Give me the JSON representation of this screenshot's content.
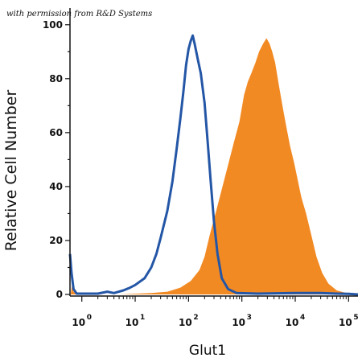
{
  "watermark": "with permission from R&D Systems",
  "chart_data": {
    "type": "area",
    "xlabel": "Glut1",
    "ylabel": "Relative Cell Number",
    "x_scale": "log",
    "xlim": [
      0.6,
      150000
    ],
    "ylim": [
      0,
      105
    ],
    "y_ticks": [
      0,
      20,
      40,
      60,
      80,
      100
    ],
    "x_tick_labels": [
      {
        "value": 1,
        "base": "10",
        "exp": "0"
      },
      {
        "value": 10,
        "base": "10",
        "exp": "1"
      },
      {
        "value": 100,
        "base": "10",
        "exp": "2"
      },
      {
        "value": 1000,
        "base": "10",
        "exp": "3"
      },
      {
        "value": 10000,
        "base": "10",
        "exp": "4"
      },
      {
        "value": 100000,
        "base": "10",
        "exp": "5"
      }
    ],
    "minor_tick_decades": [
      0,
      1,
      2,
      3,
      4
    ],
    "grid": false,
    "legend": "none",
    "series": [
      {
        "style": "filled",
        "color": "#f28a24",
        "points": [
          [
            0.62,
            0
          ],
          [
            0.65,
            3
          ],
          [
            0.7,
            1
          ],
          [
            0.8,
            0
          ],
          [
            5,
            0
          ],
          [
            20,
            0.5
          ],
          [
            40,
            1
          ],
          [
            70,
            2.5
          ],
          [
            110,
            5
          ],
          [
            160,
            9
          ],
          [
            200,
            14
          ],
          [
            250,
            22
          ],
          [
            320,
            30
          ],
          [
            420,
            39
          ],
          [
            550,
            48
          ],
          [
            700,
            56
          ],
          [
            900,
            64
          ],
          [
            1100,
            74
          ],
          [
            1300,
            79
          ],
          [
            1500,
            82
          ],
          [
            1800,
            86
          ],
          [
            2100,
            90
          ],
          [
            2500,
            93
          ],
          [
            2900,
            95
          ],
          [
            3300,
            93
          ],
          [
            3700,
            90
          ],
          [
            4200,
            86
          ],
          [
            5000,
            77
          ],
          [
            6000,
            68
          ],
          [
            7000,
            61
          ],
          [
            8000,
            55
          ],
          [
            9500,
            49
          ],
          [
            11000,
            43
          ],
          [
            13000,
            36
          ],
          [
            16000,
            30
          ],
          [
            20000,
            22
          ],
          [
            25000,
            14
          ],
          [
            32000,
            8
          ],
          [
            42000,
            4
          ],
          [
            60000,
            1.5
          ],
          [
            90000,
            0.5
          ],
          [
            150000,
            0
          ]
        ]
      },
      {
        "style": "line",
        "color": "#2456a6",
        "points": [
          [
            0.6,
            15
          ],
          [
            0.64,
            8
          ],
          [
            0.7,
            2
          ],
          [
            0.8,
            0.3
          ],
          [
            2,
            0.3
          ],
          [
            3,
            1
          ],
          [
            4,
            0.5
          ],
          [
            6,
            1.5
          ],
          [
            8,
            2.5
          ],
          [
            10,
            3.5
          ],
          [
            15,
            6
          ],
          [
            20,
            10
          ],
          [
            25,
            15
          ],
          [
            30,
            21
          ],
          [
            40,
            31
          ],
          [
            50,
            42
          ],
          [
            60,
            54
          ],
          [
            70,
            65
          ],
          [
            80,
            75
          ],
          [
            90,
            85
          ],
          [
            100,
            91
          ],
          [
            110,
            94
          ],
          [
            120,
            96
          ],
          [
            130,
            93
          ],
          [
            150,
            87
          ],
          [
            170,
            82
          ],
          [
            200,
            71
          ],
          [
            230,
            56
          ],
          [
            260,
            42
          ],
          [
            300,
            27
          ],
          [
            350,
            15
          ],
          [
            420,
            6
          ],
          [
            550,
            2
          ],
          [
            800,
            0.5
          ],
          [
            2000,
            0.3
          ],
          [
            10000,
            0.5
          ],
          [
            30000,
            0.5
          ],
          [
            60000,
            0.3
          ],
          [
            100000,
            0.2
          ],
          [
            150000,
            0
          ]
        ]
      }
    ]
  }
}
